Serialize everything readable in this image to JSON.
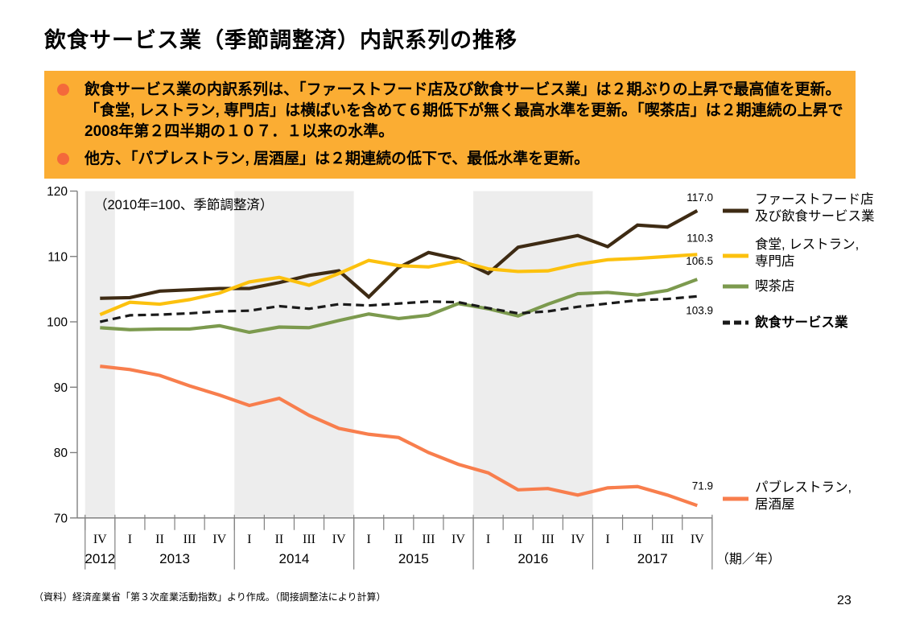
{
  "page": {
    "title": "飲食サービス業（季節調整済）内訳系列の推移",
    "source_note": "（資料）経済産業省「第３次産業活動指数」より作成。（間接調整法により計算）",
    "page_number": "23"
  },
  "callout": {
    "background_color": "#FBAD33",
    "bullet_color": "#F4693B",
    "bullets": [
      "飲食サービス業の内訳系列は、「ファーストフード店及び飲食サービス業」は２期ぶりの上昇で最高値を更新。「食堂, レストラン, 専門店」は横ばいを含めて６期低下が無く最高水準を更新。「喫茶店」は２期連続の上昇で2008年第２四半期の１０７．１以来の水準。",
      "他方、「パブレストラン, 居酒屋」は２期連続の低下で、最低水準を更新。"
    ]
  },
  "chart_data": {
    "type": "line",
    "annotation": "（2010年=100、季節調整済）",
    "x_axis_unit_label": "（期／年）",
    "ylim": [
      70,
      120
    ],
    "yticks": [
      70,
      80,
      90,
      100,
      110,
      120
    ],
    "grid": false,
    "legend_position": "right",
    "shaded_band_color": "#EDEDED",
    "axis_color": "#808080",
    "quarters": [
      "IV",
      "I",
      "II",
      "III",
      "IV",
      "I",
      "II",
      "III",
      "IV",
      "I",
      "II",
      "III",
      "IV",
      "I",
      "II",
      "III",
      "IV",
      "I",
      "II",
      "III",
      "IV"
    ],
    "years": [
      {
        "label": "2012",
        "quarters": 1,
        "shaded": true
      },
      {
        "label": "2013",
        "quarters": 4,
        "shaded": false
      },
      {
        "label": "2014",
        "quarters": 4,
        "shaded": true
      },
      {
        "label": "2015",
        "quarters": 4,
        "shaded": false
      },
      {
        "label": "2016",
        "quarters": 4,
        "shaded": true
      },
      {
        "label": "2017",
        "quarters": 4,
        "shaded": false
      }
    ],
    "series": [
      {
        "name": "ファーストフード店及び飲食サービス業",
        "legend_lines": [
          "ファーストフード店",
          "及び飲食サービス業"
        ],
        "color": "#3E2B14",
        "dash": false,
        "bold_legend": false,
        "end_label": "117.0",
        "end_label_dy": -12,
        "values": [
          103.6,
          103.7,
          104.7,
          104.9,
          105.1,
          105.1,
          106.0,
          107.1,
          107.8,
          103.8,
          108.3,
          110.6,
          109.6,
          107.4,
          111.4,
          112.3,
          113.2,
          111.5,
          114.8,
          114.5,
          117.0
        ]
      },
      {
        "name": "食堂, レストラン, 専門店",
        "legend_lines": [
          "食堂, レストラン,",
          "専門店"
        ],
        "color": "#FCC10E",
        "dash": false,
        "bold_legend": false,
        "end_label": "110.3",
        "end_label_dy": -16,
        "values": [
          101.1,
          103.0,
          102.7,
          103.4,
          104.4,
          106.1,
          106.8,
          105.6,
          107.4,
          109.4,
          108.6,
          108.4,
          109.3,
          108.1,
          107.7,
          107.8,
          108.8,
          109.5,
          109.7,
          110.0,
          110.3
        ]
      },
      {
        "name": "喫茶店",
        "legend_lines": [
          "喫茶店"
        ],
        "color": "#7C9A4E",
        "dash": false,
        "bold_legend": false,
        "end_label": "106.5",
        "end_label_dy": -18,
        "values": [
          99.1,
          98.8,
          98.9,
          98.9,
          99.4,
          98.4,
          99.2,
          99.1,
          100.2,
          101.2,
          100.5,
          101.0,
          102.8,
          102.0,
          100.9,
          102.7,
          104.3,
          104.5,
          104.1,
          104.8,
          106.5
        ]
      },
      {
        "name": "飲食サービス業",
        "legend_lines": [
          "飲食サービス業"
        ],
        "color": "#1A1A1A",
        "dash": true,
        "bold_legend": true,
        "end_label": "103.9",
        "end_label_dy": 22,
        "values": [
          100.0,
          101.0,
          101.1,
          101.3,
          101.6,
          101.7,
          102.4,
          102.0,
          102.7,
          102.5,
          102.8,
          103.1,
          103.0,
          102.1,
          101.3,
          101.6,
          102.3,
          102.8,
          103.3,
          103.5,
          103.9
        ]
      },
      {
        "name": "パブレストラン, 居酒屋",
        "legend_lines": [
          "パブレストラン,",
          "居酒屋"
        ],
        "color": "#F87E4D",
        "dash": false,
        "bold_legend": false,
        "end_label": "71.9",
        "end_label_dy": -20,
        "values": [
          93.2,
          92.7,
          91.8,
          90.2,
          88.8,
          87.2,
          88.3,
          85.7,
          83.7,
          82.8,
          82.3,
          80.0,
          78.2,
          76.9,
          74.3,
          74.5,
          73.5,
          74.6,
          74.8,
          73.5,
          71.9
        ]
      }
    ]
  }
}
